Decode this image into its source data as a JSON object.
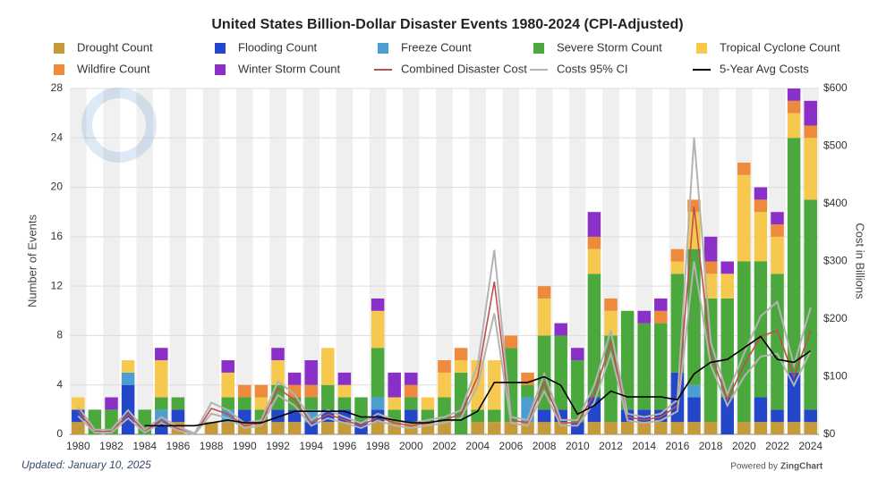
{
  "chart_data": {
    "type": "bar",
    "stacked": true,
    "title": "United States Billion-Dollar Disaster Events 1980-2024 (CPI-Adjusted)",
    "y_label": "Number of Events",
    "y2_label": "Cost in Billions",
    "note": "Updated: January 10, 2025",
    "credit": "Powered by",
    "credit_brand": "ZingChart",
    "categories": [
      "1980",
      null,
      "1982",
      null,
      "1984",
      null,
      "1986",
      null,
      "1988",
      null,
      "1990",
      null,
      "1992",
      null,
      "1994",
      null,
      "1996",
      null,
      "1998",
      null,
      "2000",
      null,
      "2002",
      null,
      "2004",
      null,
      "2006",
      null,
      "2008",
      null,
      "2010",
      null,
      "2012",
      null,
      "2014",
      null,
      "2016",
      null,
      "2018",
      null,
      "2020",
      null,
      "2022",
      null,
      "2024"
    ],
    "ylim": [
      0,
      28
    ],
    "yticks": [
      0,
      4,
      8,
      12,
      16,
      20,
      24,
      28
    ],
    "y2lim": [
      0,
      600
    ],
    "y2ticks": [
      {
        "value": 0,
        "label": "$0"
      },
      {
        "value": 100,
        "label": "$100"
      },
      {
        "value": 200,
        "label": "$200"
      },
      {
        "value": 300,
        "label": "$300"
      },
      {
        "value": 400,
        "label": "$400"
      },
      {
        "value": 500,
        "label": "$500"
      },
      {
        "value": 600,
        "label": "$600"
      }
    ],
    "series": [
      {
        "name": "Drought Count",
        "type": "bar",
        "color": "#c49a3a",
        "values": [
          1,
          0,
          0,
          0,
          0,
          0,
          1,
          0,
          1,
          1,
          1,
          1,
          1,
          1,
          0,
          1,
          1,
          0,
          1,
          1,
          1,
          1,
          1,
          0,
          1,
          1,
          1,
          1,
          1,
          1,
          0,
          1,
          1,
          1,
          1,
          1,
          1,
          1,
          1,
          0,
          1,
          1,
          1,
          1,
          1
        ]
      },
      {
        "name": "Flooding Count",
        "type": "bar",
        "color": "#2446c8",
        "values": [
          1,
          0,
          0,
          4,
          0,
          1,
          1,
          0,
          0,
          0,
          1,
          0,
          1,
          1,
          1,
          1,
          1,
          1,
          1,
          0,
          1,
          0,
          0,
          0,
          0,
          0,
          0,
          0,
          1,
          1,
          1,
          2,
          0,
          1,
          1,
          1,
          4,
          2,
          0,
          3,
          0,
          2,
          1,
          4,
          1
        ]
      },
      {
        "name": "Freeze Count",
        "type": "bar",
        "color": "#4a9ed0",
        "values": [
          0,
          0,
          0,
          1,
          0,
          1,
          0,
          0,
          0,
          1,
          0,
          0,
          0,
          0,
          1,
          0,
          0,
          0,
          1,
          0,
          0,
          0,
          0,
          0,
          0,
          0,
          0,
          2,
          0,
          0,
          0,
          0,
          0,
          0,
          0,
          0,
          0,
          1,
          0,
          0,
          0,
          0,
          0,
          0,
          0
        ]
      },
      {
        "name": "Severe Storm Count",
        "type": "bar",
        "color": "#4aa83c",
        "values": [
          0,
          2,
          2,
          0,
          2,
          1,
          1,
          0,
          0,
          1,
          1,
          1,
          2,
          1,
          1,
          2,
          1,
          2,
          4,
          1,
          1,
          1,
          2,
          5,
          1,
          1,
          6,
          1,
          6,
          6,
          5,
          10,
          7,
          8,
          7,
          7,
          8,
          11,
          10,
          8,
          13,
          11,
          11,
          19,
          17
        ]
      },
      {
        "name": "Tropical Cyclone Count",
        "type": "bar",
        "color": "#f6c84e",
        "values": [
          1,
          0,
          0,
          1,
          0,
          3,
          0,
          0,
          0,
          2,
          0,
          1,
          2,
          0,
          0,
          3,
          1,
          0,
          3,
          1,
          0,
          1,
          2,
          1,
          4,
          4,
          0,
          0,
          3,
          0,
          0,
          2,
          2,
          0,
          0,
          0,
          1,
          3,
          2,
          2,
          7,
          4,
          3,
          2,
          5
        ]
      },
      {
        "name": "Wildfire Count",
        "type": "bar",
        "color": "#ee8a3c",
        "values": [
          0,
          0,
          0,
          0,
          0,
          0,
          0,
          0,
          0,
          0,
          1,
          1,
          0,
          1,
          1,
          0,
          0,
          0,
          0,
          0,
          1,
          0,
          1,
          1,
          0,
          0,
          1,
          1,
          1,
          0,
          0,
          1,
          1,
          0,
          0,
          1,
          1,
          1,
          1,
          0,
          1,
          1,
          1,
          1,
          1
        ]
      },
      {
        "name": "Winter Storm Count",
        "type": "bar",
        "color": "#8a2fc8",
        "values": [
          0,
          0,
          1,
          0,
          0,
          1,
          0,
          0,
          0,
          1,
          0,
          0,
          1,
          1,
          2,
          0,
          1,
          0,
          1,
          2,
          1,
          0,
          0,
          0,
          0,
          0,
          0,
          0,
          0,
          1,
          1,
          2,
          0,
          0,
          1,
          1,
          0,
          0,
          2,
          1,
          0,
          1,
          1,
          1,
          2
        ]
      },
      {
        "name": "Combined Disaster Cost",
        "type": "line",
        "axis": "y2",
        "color": "#c0504d",
        "values": [
          40,
          5,
          5,
          35,
          5,
          25,
          10,
          0,
          45,
          35,
          15,
          20,
          80,
          60,
          20,
          35,
          25,
          15,
          30,
          20,
          15,
          20,
          25,
          35,
          100,
          265,
          25,
          20,
          90,
          20,
          20,
          70,
          160,
          30,
          25,
          30,
          50,
          395,
          140,
          60,
          120,
          170,
          180,
          100,
          180
        ]
      },
      {
        "name": "Costs 95% CI",
        "type": "line",
        "axis": "y2",
        "color": "#b3b3b3",
        "values": [
          48,
          8,
          8,
          42,
          8,
          30,
          13,
          2,
          55,
          42,
          19,
          25,
          92,
          70,
          25,
          42,
          30,
          19,
          36,
          25,
          19,
          25,
          30,
          42,
          120,
          320,
          30,
          25,
          105,
          25,
          25,
          85,
          180,
          36,
          30,
          36,
          60,
          515,
          160,
          70,
          140,
          205,
          230,
          120,
          220
        ]
      },
      {
        "name": "Costs 95% CI Lower",
        "type": "line",
        "axis": "y2",
        "color": "#b3b3b3",
        "legend": false,
        "values": [
          32,
          3,
          3,
          28,
          3,
          20,
          7,
          0,
          36,
          28,
          11,
          15,
          68,
          50,
          15,
          28,
          20,
          11,
          24,
          15,
          11,
          15,
          20,
          28,
          85,
          210,
          20,
          15,
          75,
          15,
          15,
          55,
          140,
          24,
          20,
          24,
          40,
          300,
          120,
          50,
          100,
          135,
          140,
          85,
          145
        ]
      },
      {
        "name": "5-Year Avg Costs",
        "type": "line",
        "axis": "y2",
        "color": "#000000",
        "values": [
          null,
          null,
          null,
          null,
          15,
          15,
          15,
          15,
          20,
          25,
          20,
          20,
          30,
          40,
          40,
          40,
          40,
          30,
          30,
          25,
          20,
          20,
          25,
          25,
          40,
          90,
          90,
          90,
          100,
          85,
          35,
          50,
          75,
          65,
          65,
          65,
          60,
          105,
          125,
          130,
          150,
          170,
          130,
          125,
          145
        ]
      }
    ]
  }
}
